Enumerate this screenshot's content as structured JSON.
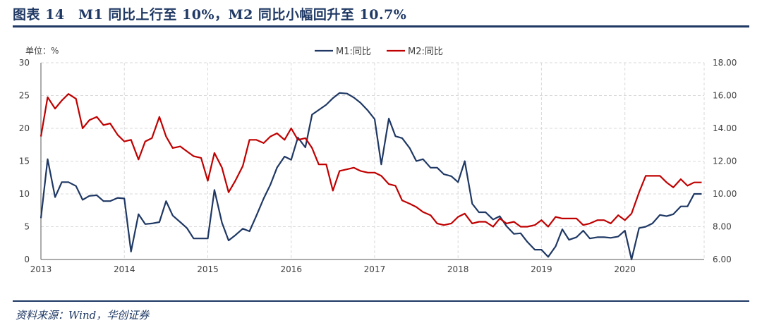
{
  "header": {
    "title": "图表 14　M1 同比上行至 10%，M2 同比小幅回升至 10.7%"
  },
  "footer": {
    "source": "资料来源：Wind，华创证券"
  },
  "chart_data": {
    "type": "line",
    "unit_label": "单位：%",
    "legend": [
      "M1:同比",
      "M2:同比"
    ],
    "x_labels": [
      "2013",
      "2014",
      "2015",
      "2016",
      "2017",
      "2018",
      "2019",
      "2020"
    ],
    "x_range": [
      2013.0,
      2020.95
    ],
    "left_axis": {
      "range": [
        0,
        30
      ],
      "ticks": [
        "0",
        "5",
        "10",
        "15",
        "20",
        "25",
        "30"
      ]
    },
    "right_axis": {
      "range": [
        6,
        18
      ],
      "ticks": [
        "6.00",
        "8.00",
        "10.00",
        "12.00",
        "14.00",
        "16.00",
        "18.00"
      ]
    },
    "colors": {
      "M1": "#1f3864",
      "M2": "#c00000"
    },
    "series": [
      {
        "name": "M1:同比",
        "axis": "left",
        "x": [
          2013.0,
          2013.08,
          2013.17,
          2013.25,
          2013.33,
          2013.42,
          2013.5,
          2013.58,
          2013.67,
          2013.75,
          2013.83,
          2013.92,
          2014.0,
          2014.08,
          2014.17,
          2014.25,
          2014.33,
          2014.42,
          2014.5,
          2014.58,
          2014.67,
          2014.75,
          2014.83,
          2014.92,
          2015.0,
          2015.08,
          2015.17,
          2015.25,
          2015.33,
          2015.42,
          2015.5,
          2015.58,
          2015.67,
          2015.75,
          2015.83,
          2015.92,
          2016.0,
          2016.08,
          2016.17,
          2016.25,
          2016.33,
          2016.42,
          2016.5,
          2016.58,
          2016.67,
          2016.75,
          2016.83,
          2016.92,
          2017.0,
          2017.08,
          2017.17,
          2017.25,
          2017.33,
          2017.42,
          2017.5,
          2017.58,
          2017.67,
          2017.75,
          2017.83,
          2017.92,
          2018.0,
          2018.08,
          2018.17,
          2018.25,
          2018.33,
          2018.42,
          2018.5,
          2018.58,
          2018.67,
          2018.75,
          2018.83,
          2018.92,
          2019.0,
          2019.08,
          2019.17,
          2019.25,
          2019.33,
          2019.42,
          2019.5,
          2019.58,
          2019.67,
          2019.75,
          2019.83,
          2019.92,
          2020.0,
          2020.08,
          2020.17,
          2020.25,
          2020.33,
          2020.42,
          2020.5,
          2020.58,
          2020.67,
          2020.75,
          2020.83,
          2020.92
        ],
        "values": [
          6.3,
          15.3,
          9.5,
          11.8,
          11.8,
          11.2,
          9.1,
          9.7,
          9.8,
          8.9,
          8.9,
          9.4,
          9.3,
          1.2,
          6.9,
          5.4,
          5.5,
          5.7,
          8.9,
          6.7,
          5.7,
          4.8,
          3.2,
          3.2,
          3.2,
          10.6,
          5.6,
          2.9,
          3.7,
          4.7,
          4.3,
          6.6,
          9.3,
          11.4,
          14.0,
          15.7,
          15.2,
          18.6,
          17.1,
          22.1,
          22.8,
          23.6,
          24.6,
          25.4,
          25.3,
          24.7,
          23.9,
          22.7,
          21.4,
          14.5,
          21.5,
          18.8,
          18.5,
          17.0,
          15.0,
          15.3,
          14.0,
          14.0,
          13.0,
          12.7,
          11.8,
          15.0,
          8.5,
          7.2,
          7.2,
          6.1,
          6.6,
          5.1,
          3.9,
          4.0,
          2.7,
          1.5,
          1.5,
          0.4,
          2.0,
          4.6,
          3.0,
          3.4,
          4.4,
          3.2,
          3.4,
          3.4,
          3.3,
          3.5,
          4.4,
          0.0,
          4.8,
          5.0,
          5.5,
          6.8,
          6.6,
          6.9,
          8.1,
          8.1,
          10.0,
          10.0
        ]
      },
      {
        "name": "M2:同比",
        "axis": "right",
        "x": [
          2013.0,
          2013.08,
          2013.17,
          2013.25,
          2013.33,
          2013.42,
          2013.5,
          2013.58,
          2013.67,
          2013.75,
          2013.83,
          2013.92,
          2014.0,
          2014.08,
          2014.17,
          2014.25,
          2014.33,
          2014.42,
          2014.5,
          2014.58,
          2014.67,
          2014.75,
          2014.83,
          2014.92,
          2015.0,
          2015.08,
          2015.17,
          2015.25,
          2015.33,
          2015.42,
          2015.5,
          2015.58,
          2015.67,
          2015.75,
          2015.83,
          2015.92,
          2016.0,
          2016.08,
          2016.17,
          2016.25,
          2016.33,
          2016.42,
          2016.5,
          2016.58,
          2016.67,
          2016.75,
          2016.83,
          2016.92,
          2017.0,
          2017.08,
          2017.17,
          2017.25,
          2017.33,
          2017.42,
          2017.5,
          2017.58,
          2017.67,
          2017.75,
          2017.83,
          2017.92,
          2018.0,
          2018.08,
          2018.17,
          2018.25,
          2018.33,
          2018.42,
          2018.5,
          2018.58,
          2018.67,
          2018.75,
          2018.83,
          2018.92,
          2019.0,
          2019.08,
          2019.17,
          2019.25,
          2019.33,
          2019.42,
          2019.5,
          2019.58,
          2019.67,
          2019.75,
          2019.83,
          2019.92,
          2020.0,
          2020.08,
          2020.17,
          2020.25,
          2020.33,
          2020.42,
          2020.5,
          2020.58,
          2020.67,
          2020.75,
          2020.83,
          2020.92
        ],
        "values": [
          13.5,
          15.9,
          15.2,
          15.7,
          16.1,
          15.8,
          14.0,
          14.5,
          14.7,
          14.2,
          14.3,
          13.6,
          13.2,
          13.3,
          12.1,
          13.2,
          13.4,
          14.7,
          13.5,
          12.8,
          12.9,
          12.6,
          12.3,
          12.2,
          10.8,
          12.5,
          11.6,
          10.1,
          10.8,
          11.7,
          13.3,
          13.3,
          13.1,
          13.5,
          13.7,
          13.3,
          14.0,
          13.3,
          13.4,
          12.8,
          11.8,
          11.8,
          10.2,
          11.4,
          11.5,
          11.6,
          11.4,
          11.3,
          11.3,
          11.1,
          10.6,
          10.5,
          9.6,
          9.4,
          9.2,
          8.9,
          8.7,
          8.2,
          8.1,
          8.2,
          8.6,
          8.8,
          8.2,
          8.3,
          8.3,
          8.0,
          8.5,
          8.2,
          8.3,
          8.0,
          8.0,
          8.1,
          8.4,
          8.0,
          8.6,
          8.5,
          8.5,
          8.5,
          8.1,
          8.2,
          8.4,
          8.4,
          8.2,
          8.7,
          8.4,
          8.8,
          10.1,
          11.1,
          11.1,
          11.1,
          10.7,
          10.4,
          10.9,
          10.5,
          10.7,
          10.7
        ]
      }
    ]
  }
}
